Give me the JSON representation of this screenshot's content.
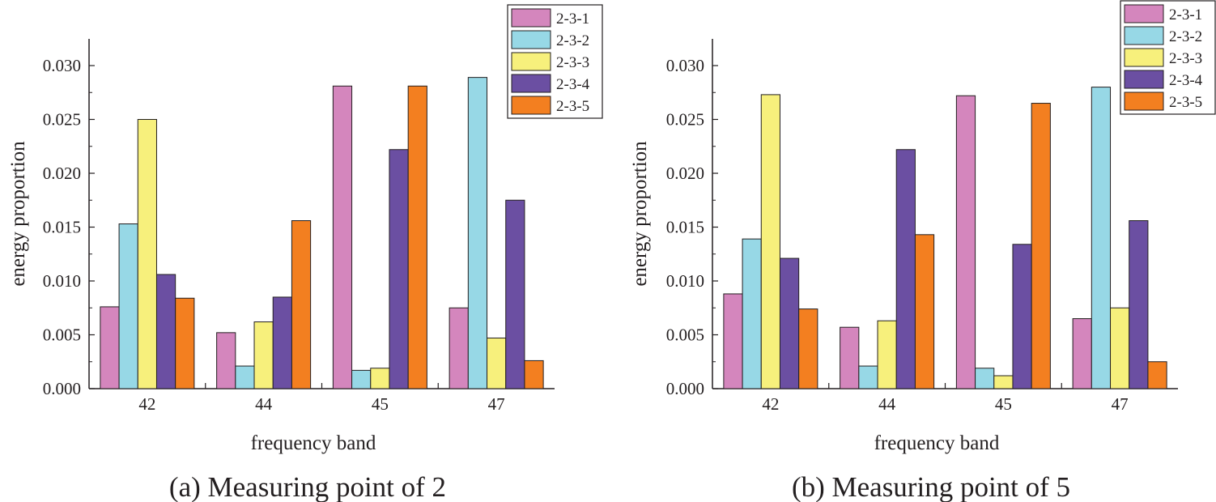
{
  "colors": [
    "#d486bd",
    "#97d8e6",
    "#f7f07c",
    "#6b4fa2",
    "#f37f20"
  ],
  "chart_data": [
    {
      "type": "bar",
      "caption": "(a) Measuring point of 2",
      "xlabel": "frequency band",
      "ylabel": "energy proportion",
      "categories": [
        "42",
        "44",
        "45",
        "47"
      ],
      "ylim": [
        0,
        0.03
      ],
      "yticks": [
        "0.000",
        "0.005",
        "0.010",
        "0.015",
        "0.020",
        "0.025",
        "0.030"
      ],
      "legend_position": "top-right",
      "series": [
        {
          "name": "2-3-1",
          "values": [
            0.0076,
            0.0052,
            0.0281,
            0.0075
          ]
        },
        {
          "name": "2-3-2",
          "values": [
            0.0153,
            0.0021,
            0.0017,
            0.0289
          ]
        },
        {
          "name": "2-3-3",
          "values": [
            0.025,
            0.0062,
            0.0019,
            0.0047
          ]
        },
        {
          "name": "2-3-4",
          "values": [
            0.0106,
            0.0085,
            0.0222,
            0.0175
          ]
        },
        {
          "name": "2-3-5",
          "values": [
            0.0084,
            0.0156,
            0.0281,
            0.0026
          ]
        }
      ]
    },
    {
      "type": "bar",
      "caption": "(b) Measuring point of 5",
      "xlabel": "frequency band",
      "ylabel": "energy proportion",
      "categories": [
        "42",
        "44",
        "45",
        "47"
      ],
      "ylim": [
        0,
        0.03
      ],
      "yticks": [
        "0.000",
        "0.005",
        "0.010",
        "0.015",
        "0.020",
        "0.025",
        "0.030"
      ],
      "legend_position": "top-right",
      "series": [
        {
          "name": "2-3-1",
          "values": [
            0.0088,
            0.0057,
            0.0272,
            0.0065
          ]
        },
        {
          "name": "2-3-2",
          "values": [
            0.0139,
            0.0021,
            0.0019,
            0.028
          ]
        },
        {
          "name": "2-3-3",
          "values": [
            0.0273,
            0.0063,
            0.0012,
            0.0075
          ]
        },
        {
          "name": "2-3-4",
          "values": [
            0.0121,
            0.0222,
            0.0134,
            0.0156
          ]
        },
        {
          "name": "2-3-5",
          "values": [
            0.0074,
            0.0143,
            0.0265,
            0.0025
          ]
        }
      ]
    }
  ]
}
